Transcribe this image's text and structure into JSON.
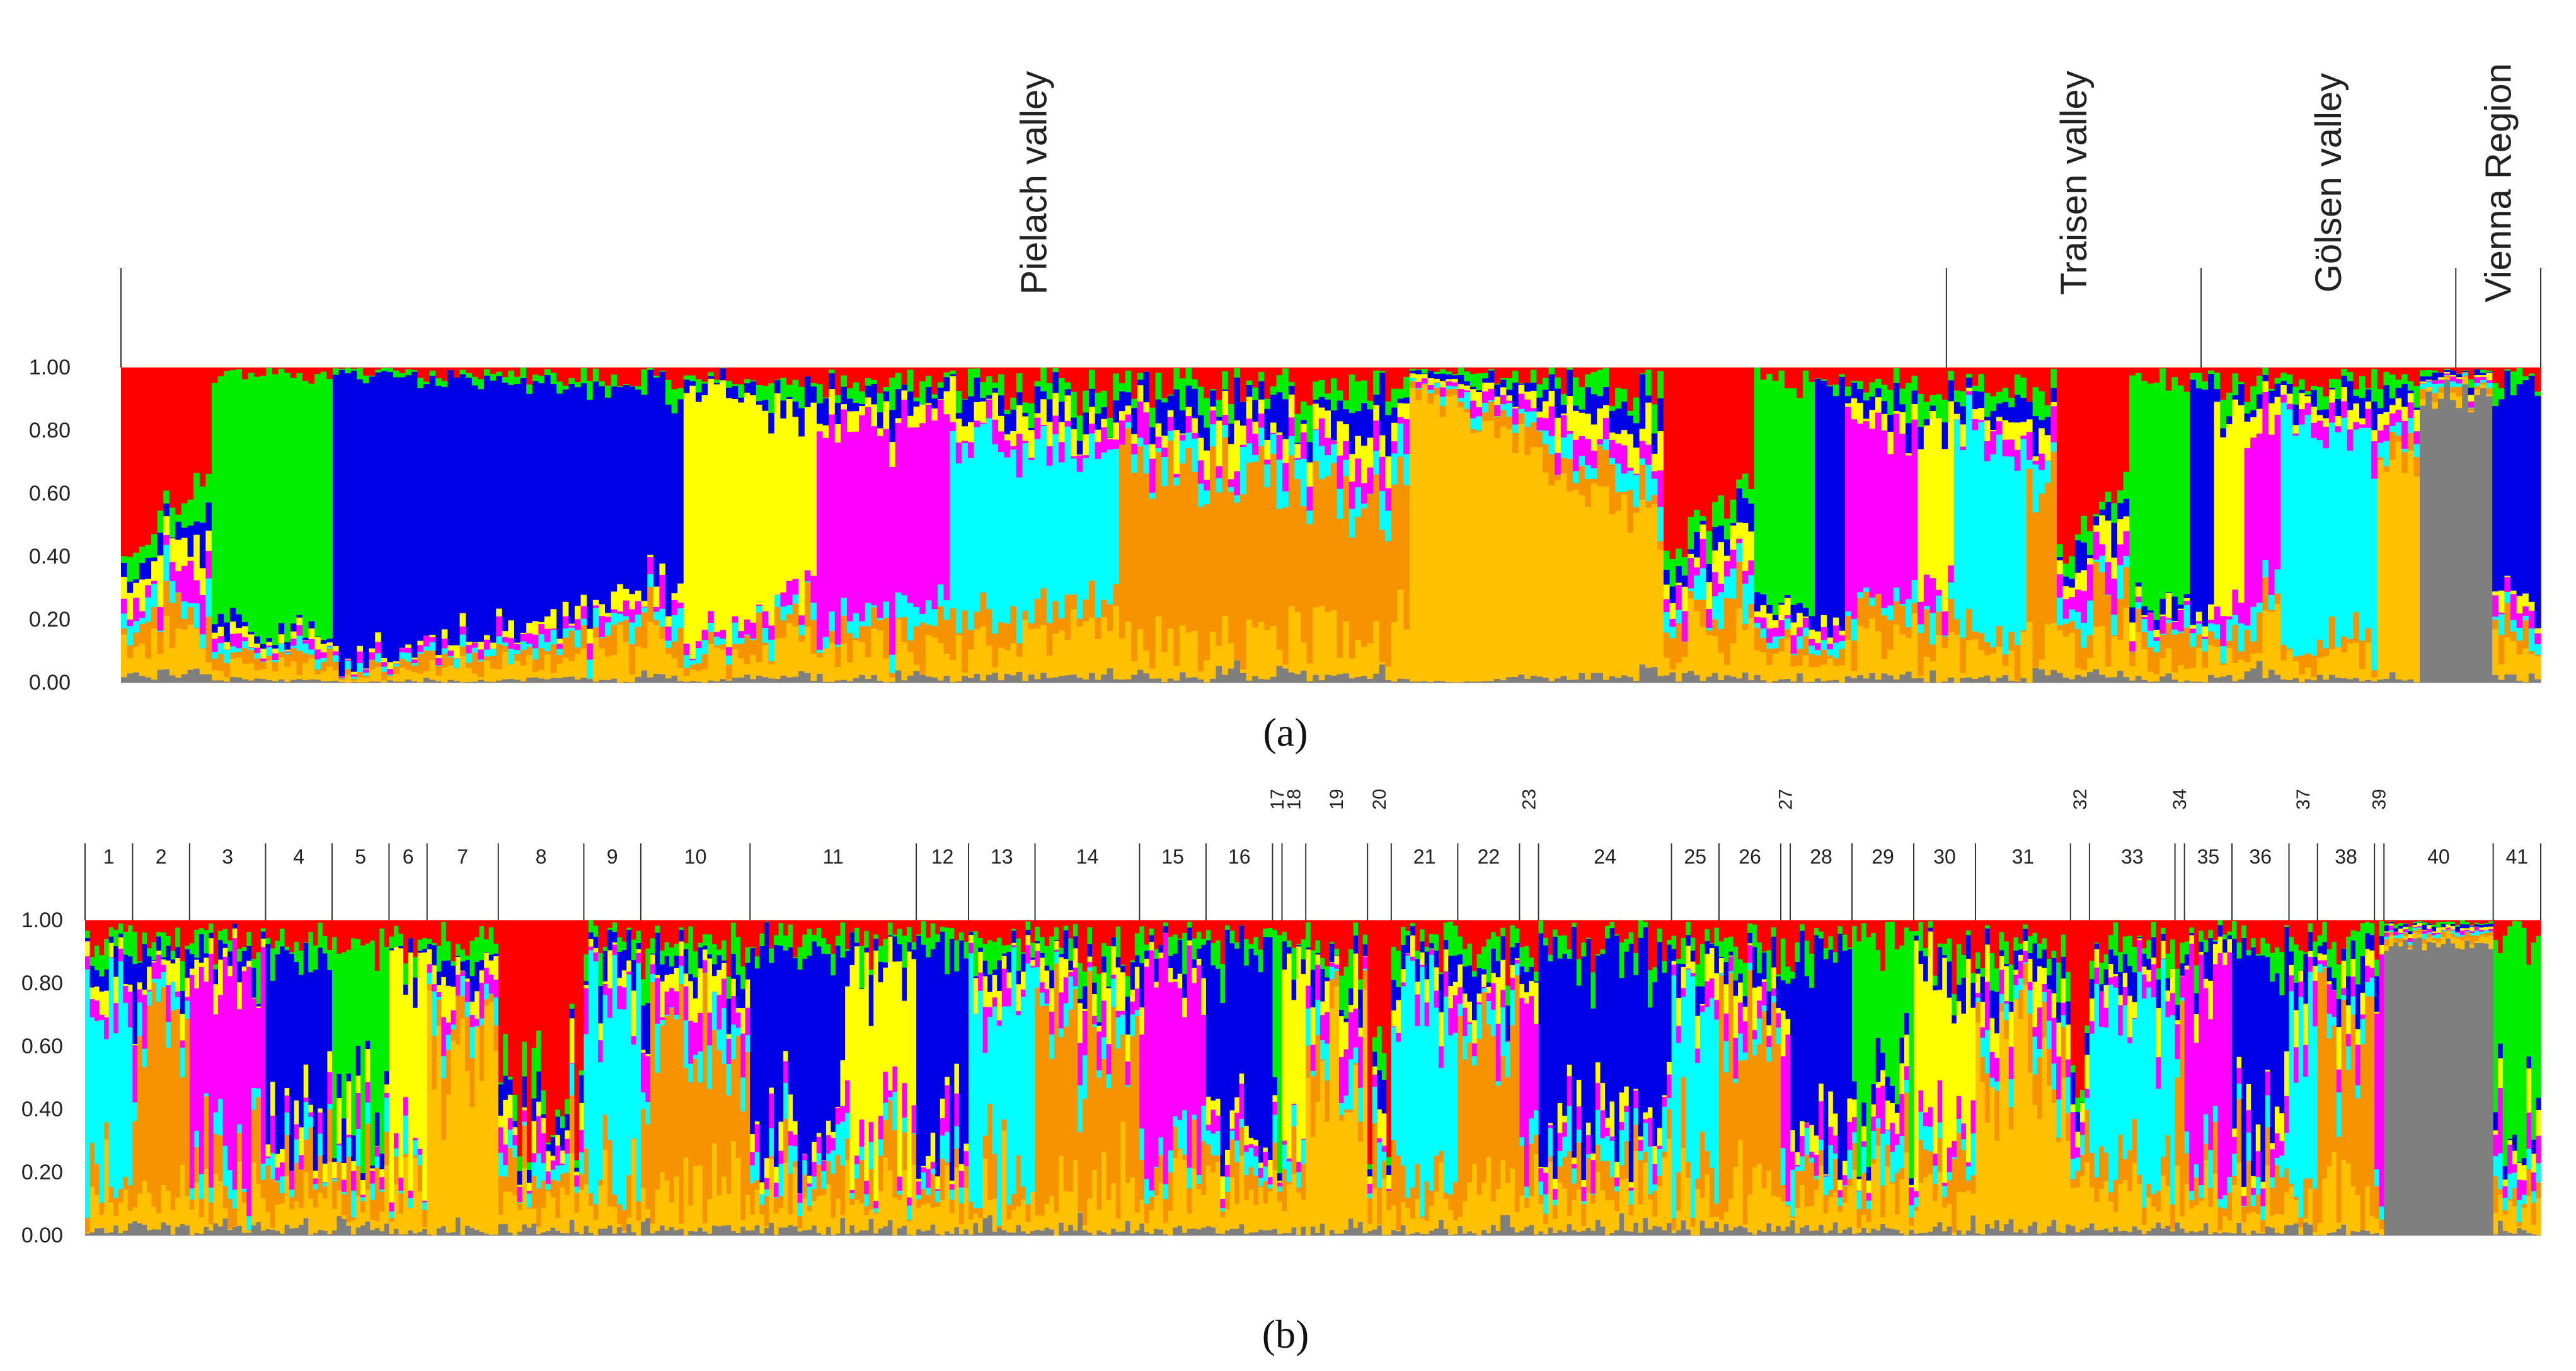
{
  "colors": {
    "red": "#ff0000",
    "green": "#00ee00",
    "blue": "#0000e6",
    "yellow": "#ffff00",
    "magenta": "#ff00ff",
    "cyan": "#00ffff",
    "orange": "#f59400",
    "gold": "#ffc000",
    "gray": "#7f7f7f"
  },
  "chart_data": [
    {
      "type": "bar",
      "stacked": true,
      "panel_label": "(a)",
      "title": "",
      "xlabel": "",
      "ylabel": "",
      "ylim": [
        0,
        1
      ],
      "yticks": [
        "0.00",
        "0.20",
        "0.40",
        "0.60",
        "0.80",
        "1.00"
      ],
      "groups": [
        {
          "name": "Pielach valley",
          "n": 430
        },
        {
          "name": "Traisen valley",
          "n": 60
        },
        {
          "name": "Gölsen valley",
          "n": 60
        },
        {
          "name": "Vienna Region",
          "n": 20
        }
      ],
      "segments": [
        {
          "n": 15,
          "dominant": "red",
          "trend": "rising",
          "from": 0.58,
          "to": 0.32
        },
        {
          "n": 20,
          "dominant": "green",
          "from": 0.8,
          "to": 0.8
        },
        {
          "n": 58,
          "dominant": "blue",
          "from": 0.92,
          "to": 0.62
        },
        {
          "n": 22,
          "dominant": "yellow",
          "from": 0.85,
          "to": 0.5
        },
        {
          "n": 22,
          "dominant": "magenta",
          "from": 0.65,
          "to": 0.55
        },
        {
          "n": 28,
          "dominant": "cyan",
          "from": 0.6,
          "to": 0.45
        },
        {
          "n": 48,
          "dominant": "orange",
          "from": 0.6,
          "to": 0.4
        },
        {
          "n": 42,
          "dominant": "gold",
          "from": 0.96,
          "to": 0.45
        },
        {
          "n": 15,
          "dominant": "red",
          "from": 0.6,
          "to": 0.35
        },
        {
          "n": 10,
          "dominant": "green",
          "from": 0.7,
          "to": 0.7
        },
        {
          "n": 5,
          "dominant": "blue",
          "from": 0.75,
          "to": 0.75
        },
        {
          "n": 12,
          "dominant": "magenta",
          "from": 0.6,
          "to": 0.5
        },
        {
          "n": 6,
          "dominant": "yellow",
          "from": 0.5,
          "to": 0.5
        },
        {
          "n": 12,
          "dominant": "cyan",
          "from": 0.65,
          "to": 0.55
        },
        {
          "n": 5,
          "dominant": "orange",
          "from": 0.5,
          "to": 0.5
        },
        {
          "n": 12,
          "dominant": "red",
          "from": 0.6,
          "to": 0.35
        },
        {
          "n": 10,
          "dominant": "green",
          "from": 0.7,
          "to": 0.7
        },
        {
          "n": 4,
          "dominant": "blue",
          "from": 0.75,
          "to": 0.75
        },
        {
          "n": 5,
          "dominant": "yellow",
          "from": 0.6,
          "to": 0.6
        },
        {
          "n": 6,
          "dominant": "magenta",
          "from": 0.55,
          "to": 0.5
        },
        {
          "n": 16,
          "dominant": "cyan",
          "from": 0.75,
          "to": 0.6
        },
        {
          "n": 7,
          "dominant": "gold",
          "from": 0.7,
          "to": 0.7
        },
        {
          "n": 12,
          "dominant": "gray",
          "from": 0.92,
          "to": 0.88
        },
        {
          "n": 8,
          "dominant": "blue",
          "from": 0.6,
          "to": 0.7
        }
      ]
    },
    {
      "type": "bar",
      "stacked": true,
      "panel_label": "(b)",
      "title": "",
      "xlabel": "",
      "ylabel": "",
      "ylim": [
        0,
        1
      ],
      "yticks": [
        "0.00",
        "0.20",
        "0.40",
        "0.60",
        "0.80",
        "1.00"
      ],
      "populations": [
        {
          "label": "1",
          "n": 10
        },
        {
          "label": "2",
          "n": 12
        },
        {
          "label": "3",
          "n": 16
        },
        {
          "label": "4",
          "n": 14
        },
        {
          "label": "5",
          "n": 12
        },
        {
          "label": "6",
          "n": 8
        },
        {
          "label": "7",
          "n": 15
        },
        {
          "label": "8",
          "n": 18
        },
        {
          "label": "9",
          "n": 12
        },
        {
          "label": "10",
          "n": 23
        },
        {
          "label": "11",
          "n": 35
        },
        {
          "label": "12",
          "n": 11
        },
        {
          "label": "13",
          "n": 14
        },
        {
          "label": "14",
          "n": 22
        },
        {
          "label": "15",
          "n": 14
        },
        {
          "label": "16",
          "n": 14
        },
        {
          "label": "17",
          "n": 2
        },
        {
          "label": "18",
          "n": 5
        },
        {
          "label": "19",
          "n": 13
        },
        {
          "label": "20",
          "n": 5
        },
        {
          "label": "21",
          "n": 14
        },
        {
          "label": "22",
          "n": 13
        },
        {
          "label": "23",
          "n": 4
        },
        {
          "label": "24",
          "n": 28
        },
        {
          "label": "25",
          "n": 10
        },
        {
          "label": "26",
          "n": 13
        },
        {
          "label": "27",
          "n": 2
        },
        {
          "label": "28",
          "n": 13
        },
        {
          "label": "29",
          "n": 13
        },
        {
          "label": "30",
          "n": 13
        },
        {
          "label": "31",
          "n": 20
        },
        {
          "label": "32",
          "n": 4
        },
        {
          "label": "33",
          "n": 18
        },
        {
          "label": "34",
          "n": 2
        },
        {
          "label": "35",
          "n": 10
        },
        {
          "label": "36",
          "n": 12
        },
        {
          "label": "37",
          "n": 6
        },
        {
          "label": "38",
          "n": 12
        },
        {
          "label": "39",
          "n": 2
        },
        {
          "label": "40",
          "n": 23
        },
        {
          "label": "41",
          "n": 10
        }
      ],
      "rotated_labels": [
        "17",
        "18",
        "19",
        "20",
        "23",
        "27",
        "32",
        "34",
        "37",
        "39"
      ]
    }
  ]
}
